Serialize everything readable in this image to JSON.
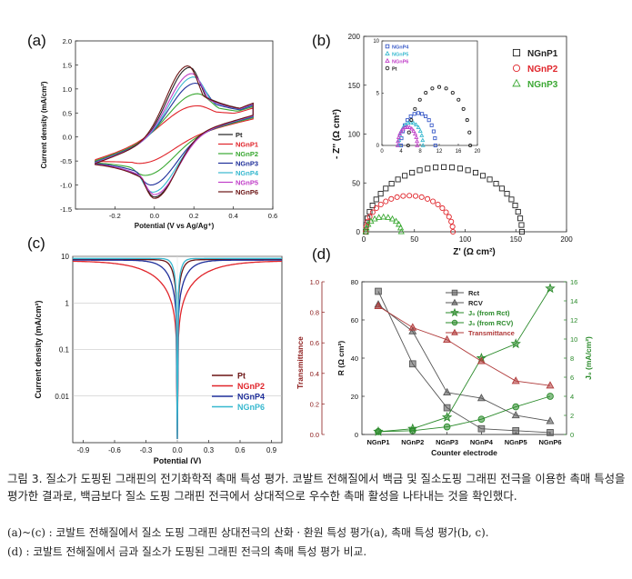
{
  "chart_data": [
    {
      "panel": "(a)",
      "type": "line",
      "xlabel": "Potential (V vs Ag/Ag⁺)",
      "ylabel": "Current density (mA/cm²)",
      "xlim": [
        -0.4,
        0.6
      ],
      "ylim": [
        -1.5,
        2.0
      ],
      "xticks": [
        "-0.2",
        "0.0",
        "0.2",
        "0.4",
        "0.6"
      ],
      "yticks": [
        "-1.5",
        "-1.0",
        "-0.5",
        "0.0",
        "0.5",
        "1.0",
        "1.5",
        "2.0"
      ],
      "legend_position": "right",
      "series": [
        {
          "name": "Pt",
          "color": "#222222",
          "anodic_peak": [
            0.18,
            1.45
          ],
          "cathodic_peak": [
            0.0,
            -1.25
          ],
          "amplitude": 1.0
        },
        {
          "name": "NGnP1",
          "color": "#e0242a",
          "anodic_peak": [
            0.22,
            0.65
          ],
          "cathodic_peak": [
            -0.08,
            -0.55
          ],
          "amplitude": 0.45
        },
        {
          "name": "NGnP2",
          "color": "#3aa832",
          "anodic_peak": [
            0.22,
            0.9
          ],
          "cathodic_peak": [
            -0.05,
            -0.8
          ],
          "amplitude": 0.62
        },
        {
          "name": "NGnP3",
          "color": "#1f2f9a",
          "anodic_peak": [
            0.21,
            1.12
          ],
          "cathodic_peak": [
            -0.02,
            -1.0
          ],
          "amplitude": 0.78
        },
        {
          "name": "NGnP4",
          "color": "#37b8cf",
          "anodic_peak": [
            0.2,
            1.25
          ],
          "cathodic_peak": [
            -0.01,
            -1.15
          ],
          "amplitude": 0.88
        },
        {
          "name": "NGnP5",
          "color": "#c03ec8",
          "anodic_peak": [
            0.19,
            1.32
          ],
          "cathodic_peak": [
            0.0,
            -1.2
          ],
          "amplitude": 0.93
        },
        {
          "name": "NGnP6",
          "color": "#6b1414",
          "anodic_peak": [
            0.17,
            1.48
          ],
          "cathodic_peak": [
            0.0,
            -1.28
          ],
          "amplitude": 1.02
        }
      ]
    },
    {
      "panel": "(b)",
      "type": "scatter",
      "xlabel": "Z' (Ω cm²)",
      "ylabel": "- Z'' (Ω cm²)",
      "xlim": [
        0,
        200
      ],
      "ylim": [
        0,
        200
      ],
      "xticks": [
        "0",
        "50",
        "100",
        "150",
        "200"
      ],
      "yticks": [
        "0",
        "50",
        "100",
        "150",
        "200"
      ],
      "legend_position": "top-right",
      "series": [
        {
          "name": "NGnP1",
          "color": "#222222",
          "marker": "square",
          "arc_start": 2,
          "arc_end": 156
        },
        {
          "name": "NGnP2",
          "color": "#e0242a",
          "marker": "circle",
          "arc_start": 2,
          "arc_end": 88
        },
        {
          "name": "NGnP3",
          "color": "#3aa832",
          "marker": "triangle",
          "arc_start": 2,
          "arc_end": 37
        }
      ],
      "inset": {
        "xlim": [
          0,
          20
        ],
        "ylim": [
          0,
          10
        ],
        "xticks": [
          "0",
          "4",
          "8",
          "12",
          "16",
          "20"
        ],
        "yticks": [
          "0",
          "5",
          "10"
        ],
        "series": [
          {
            "name": "NGnP4",
            "color": "#3a5bc8",
            "marker": "square",
            "arc_start": 4.0,
            "arc_end": 11.2
          },
          {
            "name": "NGnP5",
            "color": "#37b8cf",
            "marker": "triangle",
            "arc_start": 3.5,
            "arc_end": 8.6
          },
          {
            "name": "NGnP6",
            "color": "#c03ec8",
            "marker": "triangle",
            "arc_start": 3.3,
            "arc_end": 7.4
          },
          {
            "name": "Pt",
            "color": "#222222",
            "marker": "circle",
            "arc_start": 5.5,
            "arc_end": 18.5
          }
        ]
      }
    },
    {
      "panel": "(c)",
      "type": "line",
      "xlabel": "Potential (V)",
      "ylabel": "Current density (mA/cm²)",
      "xlim": [
        -1.0,
        1.0
      ],
      "ylim": [
        0.001,
        10
      ],
      "log_y": true,
      "xticks": [
        "-0.9",
        "-0.6",
        "-0.3",
        "0.0",
        "0.3",
        "0.6",
        "0.9"
      ],
      "yticks": [
        "0.01",
        "0.1",
        "1",
        "10"
      ],
      "legend_position": "bottom-right",
      "series": [
        {
          "name": "Pt",
          "color": "#6b1414",
          "limit": 8.5,
          "sharpness": 30
        },
        {
          "name": "NGnP2",
          "color": "#e0242a",
          "limit": 8.0,
          "sharpness": 5
        },
        {
          "name": "NGnP4",
          "color": "#1f2f9a",
          "limit": 8.3,
          "sharpness": 13
        },
        {
          "name": "NGnP6",
          "color": "#37b8cf",
          "limit": 9.0,
          "sharpness": 40
        }
      ]
    },
    {
      "panel": "(d)",
      "type": "line",
      "categories": [
        "NGnP1",
        "NGnP2",
        "NGnP3",
        "NGnP4",
        "NGnP5",
        "NGnP6"
      ],
      "xlabel": "Counter electrode",
      "ylabel_left": "R (Ω cm²)",
      "ylabel_right": "J₀ (mA/cm²)",
      "ylabel_far_left": "Transmittance",
      "ylim_left": [
        0,
        80
      ],
      "ylim_right": [
        0,
        16
      ],
      "ylim_far_left": [
        0,
        1.0
      ],
      "yticks_left": [
        "0",
        "20",
        "40",
        "60",
        "80"
      ],
      "yticks_right": [
        "0",
        "2",
        "4",
        "6",
        "8",
        "10",
        "12",
        "14",
        "16"
      ],
      "yticks_far_left": [
        "0.0",
        "0.2",
        "0.4",
        "0.6",
        "0.8",
        "1.0"
      ],
      "legend_position": "top-right",
      "series": [
        {
          "name": "R_ct",
          "legend": "Rct",
          "axis": "left",
          "color": "#555555",
          "marker": "square",
          "values": [
            75,
            37,
            14,
            3,
            2,
            1
          ]
        },
        {
          "name": "R_CV",
          "legend": "RCV",
          "axis": "left",
          "color": "#555555",
          "marker": "triangle",
          "values": [
            68,
            54,
            22,
            19,
            10,
            7
          ]
        },
        {
          "name": "J0_from_Rct",
          "legend": "J₀ (from Rct)",
          "axis": "right",
          "color": "#2a8a2a",
          "marker": "star",
          "values": [
            0.3,
            0.6,
            1.8,
            8,
            9.5,
            15.3
          ]
        },
        {
          "name": "J0_from_Rcv",
          "legend": "J₀ (from RCV)",
          "axis": "right",
          "color": "#2a8a2a",
          "marker": "circle",
          "values": [
            0.3,
            0.4,
            0.8,
            1.6,
            2.9,
            4.0
          ]
        },
        {
          "name": "Transmittance",
          "legend": "Transmittance",
          "axis": "far_left",
          "color": "#b03a3a",
          "marker": "triangle",
          "values": [
            0.84,
            0.7,
            0.62,
            0.48,
            0.35,
            0.32
          ]
        }
      ]
    }
  ],
  "caption": {
    "main": "그림 3. 질소가 도핑된 그래핀의 전기화학적 촉매 특성 평가. 코발트 전해질에서 백금 및 질소도핑 그래핀 전극을 이용한 촉매 특성을 평가한 결과로, 백금보다 질소 도핑 그래핀 전극에서 상대적으로 우수한 촉매 활성을 나타내는 것을 확인했다.",
    "note_a": "(a)~(c) : 코발트 전해질에서 질소 도핑 그래핀 상대전극의 산화 · 환원 특성 평가(a), 촉매 특성 평가(b, c).",
    "note_d": "(d) : 코발트 전해질에서 금과 질소가 도핑된 그래핀 전극의 촉매 특성 평가 비교."
  }
}
